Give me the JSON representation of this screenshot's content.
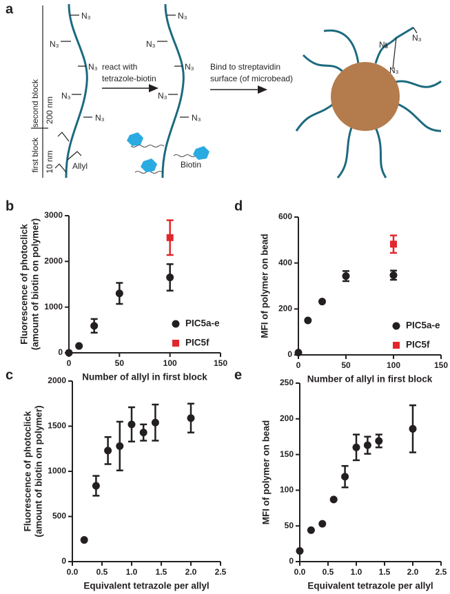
{
  "diagram": {
    "label": "a",
    "azide": [
      "N₃",
      "N₃",
      "N₃",
      "N₃",
      "N₃",
      "N₃",
      "N₃",
      "N₃",
      "N₃",
      "N₃",
      "N₃",
      "N₃",
      "N₃"
    ],
    "arrow1": [
      "react with",
      "tetrazole-biotin"
    ],
    "arrow2": [
      "Bind to streptavidin",
      "surface (of microbead)"
    ],
    "second_block": "second block",
    "second_length": "200 nm",
    "first_block": "first block",
    "first_length": "10 nm",
    "allyl": "Allyl",
    "biotin": "Biotin"
  },
  "chart_data": [
    {
      "type": "scatter",
      "label": "b",
      "xlabel": "Number of allyl in first block",
      "ylabel": [
        "Fluorescence of photoclick",
        "(amount of biotin on polymer)"
      ],
      "xlim": [
        0,
        150
      ],
      "xticks": [
        0,
        50,
        100,
        150
      ],
      "ylim": [
        0,
        3000
      ],
      "yticks": [
        0,
        1000,
        2000,
        3000
      ],
      "legend": "lower right",
      "series": [
        {
          "name": "PIC5a-e",
          "color": "#231f20",
          "marker": "circle",
          "x": [
            0,
            10,
            25,
            50,
            100
          ],
          "values": [
            0,
            150,
            590,
            1300,
            1650
          ],
          "errors": [
            null,
            null,
            150,
            230,
            290
          ]
        },
        {
          "name": "PIC5f",
          "color": "#e3262b",
          "marker": "square",
          "x": [
            100
          ],
          "values": [
            2520
          ],
          "errors": [
            380
          ]
        }
      ]
    },
    {
      "type": "scatter",
      "label": "d",
      "xlabel": "Number of allyl in first block",
      "ylabel": [
        "MFI of polymer on bead"
      ],
      "xlim": [
        0,
        150
      ],
      "xticks": [
        0,
        50,
        100,
        150
      ],
      "ylim": [
        0,
        600
      ],
      "yticks": [
        0,
        200,
        400,
        600
      ],
      "legend": "lower right",
      "series": [
        {
          "name": "PIC5a-e",
          "color": "#231f20",
          "marker": "circle",
          "x": [
            0,
            10,
            25,
            50,
            100
          ],
          "values": [
            10,
            150,
            232,
            343,
            347
          ],
          "errors": [
            null,
            null,
            null,
            22,
            20
          ]
        },
        {
          "name": "PIC5f",
          "color": "#e3262b",
          "marker": "square",
          "x": [
            100
          ],
          "values": [
            482
          ],
          "errors": [
            38
          ]
        }
      ]
    },
    {
      "type": "scatter",
      "label": "c",
      "xlabel": "Equivalent tetrazole per allyl",
      "ylabel": [
        "Fluorescence of photoclick",
        "(amount of biotin on polymer)"
      ],
      "xlim": [
        0,
        2.5
      ],
      "xticks": [
        {
          "value": 0,
          "label": "0.0"
        },
        0.5,
        {
          "value": 1,
          "label": "1.0"
        },
        1.5,
        {
          "value": 2,
          "label": "2.0"
        },
        2.5
      ],
      "ylim": [
        0,
        2000
      ],
      "yticks": [
        0,
        500,
        1000,
        1500,
        2000
      ],
      "series": [
        {
          "color": "#231f20",
          "marker": "circle",
          "x": [
            0.2,
            0.4,
            0.6,
            0.8,
            1.0,
            1.2,
            1.4,
            2.0
          ],
          "values": [
            240,
            840,
            1230,
            1280,
            1520,
            1430,
            1540,
            1590
          ],
          "errors": [
            null,
            110,
            150,
            270,
            190,
            90,
            200,
            160
          ]
        }
      ]
    },
    {
      "type": "scatter",
      "label": "e",
      "xlabel": "Equivalent tetrazole per allyl",
      "ylabel": [
        "MFI of polymer on bead"
      ],
      "xlim": [
        0,
        2.5
      ],
      "xticks": [
        {
          "value": 0,
          "label": "0.0"
        },
        0.5,
        {
          "value": 1,
          "label": "1.0"
        },
        1.5,
        {
          "value": 2,
          "label": "2.0"
        },
        2.5
      ],
      "ylim": [
        0,
        250
      ],
      "yticks": [
        0,
        50,
        100,
        150,
        200,
        250
      ],
      "series": [
        {
          "color": "#231f20",
          "marker": "circle",
          "x": [
            0,
            0.2,
            0.4,
            0.6,
            0.8,
            1.0,
            1.2,
            1.4,
            2.0
          ],
          "values": [
            15,
            44,
            53,
            87,
            119,
            160,
            163,
            169,
            186
          ],
          "errors": [
            null,
            null,
            null,
            null,
            15,
            18,
            12,
            9,
            33
          ]
        }
      ]
    }
  ]
}
